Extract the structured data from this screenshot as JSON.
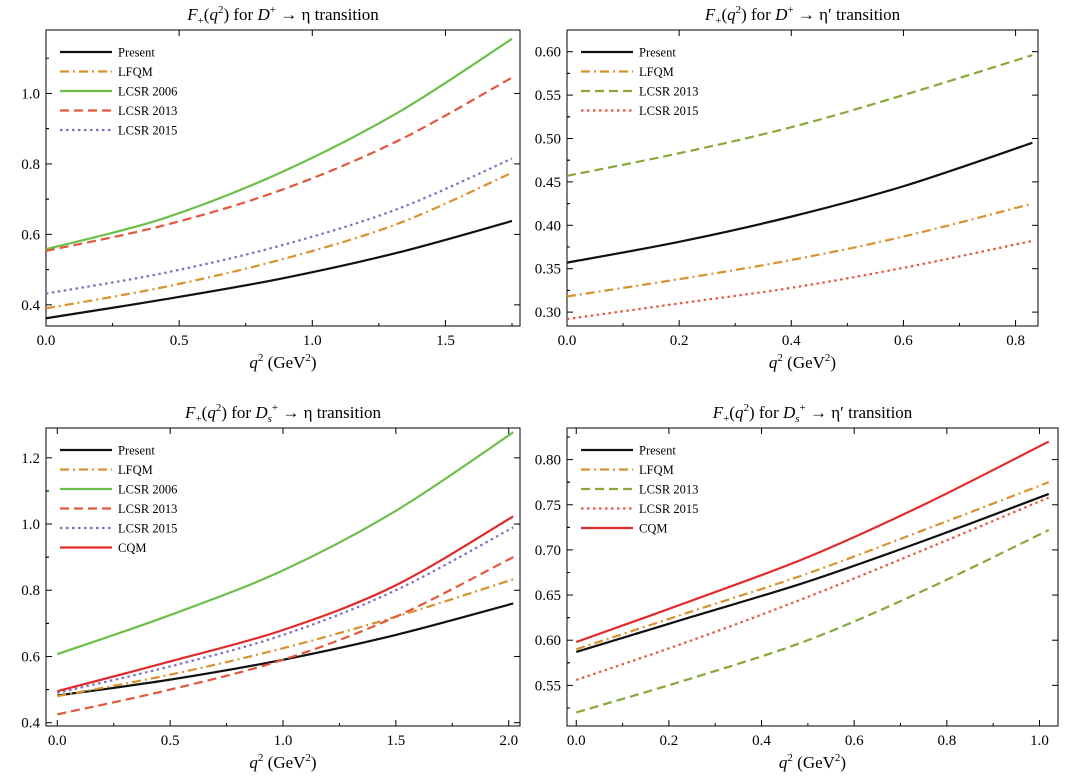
{
  "colors": {
    "present": "#111111",
    "lfqm": "#d9912e",
    "lcsr2006": "#6cbf4a",
    "lcsr2013": "#e4573d",
    "lcsr2015": "#7a70bf",
    "cqm": "#e02a2a",
    "lcsr2013_green": "#88a83c"
  },
  "chart_data": [
    {
      "type": "line",
      "title": {
        "prefix": "F",
        "sub": "+",
        "mid": "(q",
        "sup": "2",
        "after": ") for D",
        "sup2": "+",
        "arrow": " → η transition"
      },
      "xlabel": "q² (GeV²)",
      "xlim": [
        0,
        1.78
      ],
      "ylim": [
        0.34,
        1.18
      ],
      "xticks": [
        0.0,
        0.5,
        1.0,
        1.5
      ],
      "xtick_labels": [
        "0.0",
        "0.5",
        "1.0",
        "1.5"
      ],
      "yticks": [
        0.4,
        0.6,
        0.8,
        1.0
      ],
      "ytick_labels": [
        "0.4",
        "0.6",
        "0.8",
        "1.0"
      ],
      "legend_position": "top-left",
      "series": [
        {
          "name": "Present",
          "style": "solid",
          "color_key": "present",
          "x": [
            0,
            0.44,
            0.88,
            1.32,
            1.75
          ],
          "y": [
            0.362,
            0.415,
            0.474,
            0.548,
            0.638
          ]
        },
        {
          "name": "LFQM",
          "style": "dashdot",
          "color_key": "lfqm",
          "x": [
            0,
            0.44,
            0.88,
            1.32,
            1.75
          ],
          "y": [
            0.39,
            0.45,
            0.528,
            0.63,
            0.775
          ]
        },
        {
          "name": "LCSR 2006",
          "style": "solid",
          "color_key": "lcsr2006",
          "x": [
            0,
            0.44,
            0.88,
            1.32,
            1.75
          ],
          "y": [
            0.558,
            0.645,
            0.775,
            0.945,
            1.155
          ]
        },
        {
          "name": "LCSR 2013",
          "style": "dash",
          "color_key": "lcsr2013",
          "x": [
            0,
            0.44,
            0.88,
            1.32,
            1.75
          ],
          "y": [
            0.553,
            0.625,
            0.725,
            0.865,
            1.045
          ]
        },
        {
          "name": "LCSR 2015",
          "style": "dot",
          "color_key": "lcsr2015",
          "x": [
            0,
            0.44,
            0.88,
            1.32,
            1.75
          ],
          "y": [
            0.432,
            0.49,
            0.568,
            0.672,
            0.815
          ]
        }
      ]
    },
    {
      "type": "line",
      "title": {
        "prefix": "F",
        "sub": "+",
        "mid": "(q",
        "sup": "2",
        "after": ") for D",
        "sup2": "+",
        "arrow": " → η′ transition"
      },
      "xlabel": "q² (GeV²)",
      "xlim": [
        0,
        0.84
      ],
      "ylim": [
        0.284,
        0.625
      ],
      "xticks": [
        0.0,
        0.2,
        0.4,
        0.6,
        0.8
      ],
      "xtick_labels": [
        "0.0",
        "0.2",
        "0.4",
        "0.6",
        "0.8"
      ],
      "yticks": [
        0.3,
        0.35,
        0.4,
        0.45,
        0.5,
        0.55,
        0.6
      ],
      "ytick_labels": [
        "0.30",
        "0.35",
        "0.40",
        "0.45",
        "0.50",
        "0.55",
        "0.60"
      ],
      "legend_position": "top-left",
      "series": [
        {
          "name": "Present",
          "style": "solid",
          "color_key": "present",
          "x": [
            0,
            0.2,
            0.4,
            0.6,
            0.83
          ],
          "y": [
            0.357,
            0.381,
            0.41,
            0.445,
            0.495
          ]
        },
        {
          "name": "LFQM",
          "style": "dashdot",
          "color_key": "lfqm",
          "x": [
            0,
            0.2,
            0.4,
            0.6,
            0.83
          ],
          "y": [
            0.318,
            0.338,
            0.36,
            0.387,
            0.425
          ]
        },
        {
          "name": "LCSR 2013",
          "style": "dash",
          "color_key": "lcsr2013_green",
          "x": [
            0,
            0.2,
            0.4,
            0.6,
            0.83
          ],
          "y": [
            0.457,
            0.483,
            0.513,
            0.55,
            0.596
          ]
        },
        {
          "name": "LCSR 2015",
          "style": "dot",
          "color_key": "lcsr2013",
          "x": [
            0,
            0.2,
            0.4,
            0.6,
            0.83
          ],
          "y": [
            0.292,
            0.31,
            0.328,
            0.351,
            0.382
          ]
        }
      ]
    },
    {
      "type": "line",
      "title": {
        "prefix": "F",
        "sub": "+",
        "mid": "(q",
        "sup": "2",
        "after": ") for D",
        "sub2": "s",
        "sup2": "+",
        "arrow": " → η transition"
      },
      "xlabel": "q² (GeV²)",
      "xlim": [
        -0.05,
        2.05
      ],
      "ylim": [
        0.39,
        1.29
      ],
      "xticks": [
        0.0,
        0.5,
        1.0,
        1.5,
        2.0
      ],
      "xtick_labels": [
        "0.0",
        "0.5",
        "1.0",
        "1.5",
        "2.0"
      ],
      "yticks": [
        0.4,
        0.6,
        0.8,
        1.0,
        1.2
      ],
      "ytick_labels": [
        "0.4",
        "0.6",
        "0.8",
        "1.0",
        "1.2"
      ],
      "legend_position": "top-left",
      "series": [
        {
          "name": "Present",
          "style": "solid",
          "color_key": "present",
          "x": [
            0,
            0.5,
            1.0,
            1.5,
            2.02
          ],
          "y": [
            0.482,
            0.53,
            0.59,
            0.665,
            0.76
          ]
        },
        {
          "name": "LFQM",
          "style": "dashdot",
          "color_key": "lfqm",
          "x": [
            0,
            0.5,
            1.0,
            1.5,
            2.02
          ],
          "y": [
            0.48,
            0.545,
            0.625,
            0.72,
            0.833
          ]
        },
        {
          "name": "LCSR 2006",
          "style": "solid",
          "color_key": "lcsr2006",
          "x": [
            0,
            0.5,
            1.0,
            1.5,
            2.02
          ],
          "y": [
            0.607,
            0.725,
            0.86,
            1.04,
            1.277
          ]
        },
        {
          "name": "LCSR 2013",
          "style": "dash",
          "color_key": "lcsr2013",
          "x": [
            0,
            0.5,
            1.0,
            1.5,
            2.02
          ],
          "y": [
            0.425,
            0.5,
            0.59,
            0.72,
            0.9
          ]
        },
        {
          "name": "LCSR 2015",
          "style": "dot",
          "color_key": "lcsr2015",
          "x": [
            0,
            0.5,
            1.0,
            1.5,
            2.02
          ],
          "y": [
            0.49,
            0.57,
            0.665,
            0.8,
            0.99
          ]
        },
        {
          "name": "CQM",
          "style": "solid",
          "color_key": "cqm",
          "x": [
            0,
            0.5,
            1.0,
            1.5,
            2.02
          ],
          "y": [
            0.495,
            0.585,
            0.68,
            0.815,
            1.023
          ]
        }
      ]
    },
    {
      "type": "line",
      "title": {
        "prefix": "F",
        "sub": "+",
        "mid": "(q",
        "sup": "2",
        "after": ") for D",
        "sub2": "s",
        "sup2": "+",
        "arrow": " → η′ transition"
      },
      "xlabel": "q² (GeV²)",
      "xlim": [
        -0.02,
        1.04
      ],
      "ylim": [
        0.505,
        0.835
      ],
      "xticks": [
        0.0,
        0.2,
        0.4,
        0.6,
        0.8,
        1.0
      ],
      "xtick_labels": [
        "0.0",
        "0.2",
        "0.4",
        "0.6",
        "0.8",
        "1.0"
      ],
      "yticks": [
        0.55,
        0.6,
        0.65,
        0.7,
        0.75,
        0.8
      ],
      "ytick_labels": [
        "0.55",
        "0.60",
        "0.65",
        "0.70",
        "0.75",
        "0.80"
      ],
      "legend_position": "top-left",
      "series": [
        {
          "name": "Present",
          "style": "solid",
          "color_key": "present",
          "x": [
            0,
            0.25,
            0.5,
            0.75,
            1.02
          ],
          "y": [
            0.587,
            0.626,
            0.665,
            0.71,
            0.762
          ]
        },
        {
          "name": "LFQM",
          "style": "dashdot",
          "color_key": "lfqm",
          "x": [
            0,
            0.25,
            0.5,
            0.75,
            1.02
          ],
          "y": [
            0.59,
            0.632,
            0.674,
            0.722,
            0.775
          ]
        },
        {
          "name": "LCSR 2013",
          "style": "dash",
          "color_key": "lcsr2013_green",
          "x": [
            0,
            0.25,
            0.5,
            0.75,
            1.02
          ],
          "y": [
            0.52,
            0.558,
            0.6,
            0.655,
            0.722
          ]
        },
        {
          "name": "LCSR 2015",
          "style": "dot",
          "color_key": "lcsr2013",
          "x": [
            0,
            0.25,
            0.5,
            0.75,
            1.02
          ],
          "y": [
            0.556,
            0.6,
            0.648,
            0.7,
            0.758
          ]
        },
        {
          "name": "CQM",
          "style": "solid",
          "color_key": "cqm",
          "x": [
            0,
            0.25,
            0.5,
            0.75,
            1.02
          ],
          "y": [
            0.598,
            0.644,
            0.692,
            0.75,
            0.82
          ]
        }
      ]
    }
  ]
}
